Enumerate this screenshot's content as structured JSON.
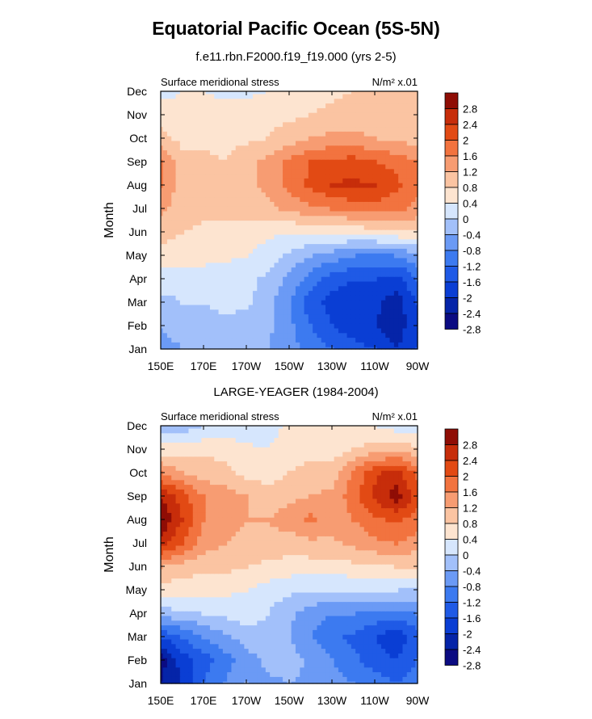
{
  "figure": {
    "title": "Equatorial Pacific Ocean (5S-5N)"
  },
  "chart_data": [
    {
      "type": "heatmap",
      "title": "f.e11.rbn.F2000.f19_f19.000 (yrs 2-5)",
      "left_label": "Surface meridional stress",
      "right_label": "N/m² x.01",
      "ylabel": "Month",
      "xlabel": "",
      "x_ticks": [
        "150E",
        "170E",
        "170W",
        "150W",
        "130W",
        "110W",
        "90W"
      ],
      "x_values": [
        150,
        170,
        190,
        210,
        230,
        250,
        270
      ],
      "y_ticks": [
        "Jan",
        "Feb",
        "Mar",
        "Apr",
        "May",
        "Jun",
        "Jul",
        "Aug",
        "Sep",
        "Oct",
        "Nov",
        "Dec"
      ],
      "levels": [
        "2.8",
        "2.4",
        "2",
        "1.6",
        "1.2",
        "0.8",
        "0.4",
        "0",
        "-0.4",
        "-0.8",
        "-1.2",
        "-1.6",
        "-2",
        "-2.4",
        "-2.8"
      ],
      "z": [
        [
          -1.0,
          -0.8,
          -0.5,
          -0.5,
          -0.6,
          -0.8,
          -1.0,
          -1.4,
          -1.6,
          -1.8,
          -2.0,
          -2.4,
          -2.0
        ],
        [
          -0.8,
          -0.6,
          -0.5,
          -0.5,
          -0.6,
          -0.7,
          -1.1,
          -1.6,
          -2.0,
          -2.3,
          -2.4,
          -2.6,
          -2.2
        ],
        [
          -0.5,
          -0.4,
          -0.4,
          -0.3,
          -0.3,
          -0.6,
          -1.2,
          -1.8,
          -2.2,
          -2.4,
          -2.3,
          -2.6,
          -2.0
        ],
        [
          -0.2,
          -0.3,
          -0.3,
          -0.3,
          -0.3,
          -0.5,
          -0.9,
          -1.4,
          -1.8,
          -2.0,
          -2.0,
          -2.2,
          -1.6
        ],
        [
          0.2,
          0.2,
          0.2,
          0.1,
          0.0,
          -0.2,
          -0.5,
          -0.8,
          -1.0,
          -1.2,
          -1.3,
          -1.2,
          -0.9
        ],
        [
          0.6,
          0.4,
          0.3,
          0.3,
          0.2,
          0.1,
          0.0,
          0.1,
          0.1,
          0.1,
          0.2,
          0.3,
          0.3
        ],
        [
          0.9,
          0.6,
          0.5,
          0.5,
          0.6,
          0.7,
          0.9,
          1.1,
          1.2,
          1.3,
          1.4,
          1.3,
          1.1
        ],
        [
          1.2,
          0.6,
          0.6,
          0.6,
          0.7,
          0.9,
          1.3,
          1.7,
          2.0,
          2.1,
          2.0,
          1.7,
          1.3
        ],
        [
          1.3,
          0.5,
          0.5,
          0.4,
          0.7,
          0.9,
          1.3,
          1.6,
          1.7,
          1.8,
          1.6,
          1.5,
          1.2
        ],
        [
          0.5,
          0.3,
          0.3,
          0.3,
          0.3,
          0.4,
          0.6,
          0.8,
          0.9,
          0.9,
          0.8,
          0.7,
          0.6
        ],
        [
          0.3,
          0.2,
          0.2,
          0.2,
          0.2,
          0.3,
          0.3,
          0.4,
          0.5,
          0.6,
          0.6,
          0.6,
          0.5
        ],
        [
          -0.2,
          0.0,
          0.0,
          -0.1,
          -0.1,
          0.0,
          0.1,
          0.2,
          0.3,
          0.4,
          0.5,
          0.6,
          0.6
        ]
      ]
    },
    {
      "type": "heatmap",
      "title": "LARGE-YEAGER (1984-2004)",
      "left_label": "Surface meridional stress",
      "right_label": "N/m² x.01",
      "ylabel": "Month",
      "xlabel": "",
      "x_ticks": [
        "150E",
        "170E",
        "170W",
        "150W",
        "130W",
        "110W",
        "90W"
      ],
      "x_values": [
        150,
        170,
        190,
        210,
        230,
        250,
        270
      ],
      "y_ticks": [
        "Jan",
        "Feb",
        "Mar",
        "Apr",
        "May",
        "Jun",
        "Jul",
        "Aug",
        "Sep",
        "Oct",
        "Nov",
        "Dec"
      ],
      "levels": [
        "2.8",
        "2.4",
        "2",
        "1.6",
        "1.2",
        "0.8",
        "0.4",
        "0",
        "-0.4",
        "-0.8",
        "-1.2",
        "-1.6",
        "-2",
        "-2.4",
        "-2.8"
      ],
      "z": [
        [
          -2.8,
          -2.4,
          -1.6,
          -1.2,
          -0.8,
          -0.9,
          -0.8,
          -0.9,
          -1.0,
          -1.2,
          -1.4,
          -1.6,
          -1.4
        ],
        [
          -3.0,
          -2.2,
          -1.8,
          -1.4,
          -1.0,
          -0.7,
          -0.6,
          -0.9,
          -1.2,
          -1.5,
          -1.8,
          -2.0,
          -1.6
        ],
        [
          -2.0,
          -1.6,
          -1.2,
          -0.9,
          -0.6,
          -0.5,
          -0.8,
          -1.2,
          -1.5,
          -1.7,
          -2.0,
          -2.3,
          -1.8
        ],
        [
          -0.6,
          -0.5,
          -0.4,
          -0.3,
          -0.2,
          -0.4,
          -0.7,
          -1.0,
          -1.2,
          -1.2,
          -1.3,
          -1.4,
          -1.2
        ],
        [
          0.2,
          0.2,
          0.1,
          0.1,
          0.0,
          -0.2,
          -0.3,
          -0.4,
          -0.4,
          -0.4,
          -0.4,
          -0.4,
          -0.5
        ],
        [
          0.8,
          0.6,
          0.5,
          0.5,
          0.4,
          0.3,
          0.2,
          0.2,
          0.2,
          0.3,
          0.3,
          0.4,
          0.4
        ],
        [
          2.2,
          1.6,
          1.0,
          0.8,
          0.7,
          0.7,
          0.6,
          0.7,
          0.7,
          0.9,
          1.1,
          1.2,
          1.0
        ],
        [
          2.8,
          2.0,
          1.2,
          1.0,
          0.8,
          0.8,
          1.0,
          1.3,
          1.0,
          1.2,
          1.5,
          1.7,
          1.4
        ],
        [
          2.4,
          1.8,
          1.2,
          1.0,
          0.8,
          0.6,
          0.7,
          0.8,
          0.9,
          1.4,
          2.1,
          2.6,
          1.8
        ],
        [
          1.2,
          0.8,
          0.6,
          0.5,
          0.3,
          0.2,
          0.4,
          0.5,
          0.6,
          1.3,
          1.9,
          2.2,
          1.5
        ],
        [
          0.2,
          0.2,
          0.3,
          0.3,
          0.1,
          0.0,
          0.2,
          0.3,
          0.2,
          0.4,
          0.6,
          0.7,
          0.5
        ],
        [
          -0.8,
          -0.6,
          -0.4,
          -0.3,
          -0.3,
          -0.2,
          0.1,
          0.1,
          0.0,
          0.0,
          0.0,
          -0.2,
          -0.3
        ]
      ]
    }
  ],
  "palette": [
    "#0b0b82",
    "#0524a8",
    "#0a3ed4",
    "#1f5ae6",
    "#3c7af0",
    "#6b9af5",
    "#a2c0fa",
    "#d6e6fd",
    "#fde4d0",
    "#fbc4a2",
    "#f79c72",
    "#f2733f",
    "#e24a14",
    "#c72d0a",
    "#8f0d05"
  ]
}
